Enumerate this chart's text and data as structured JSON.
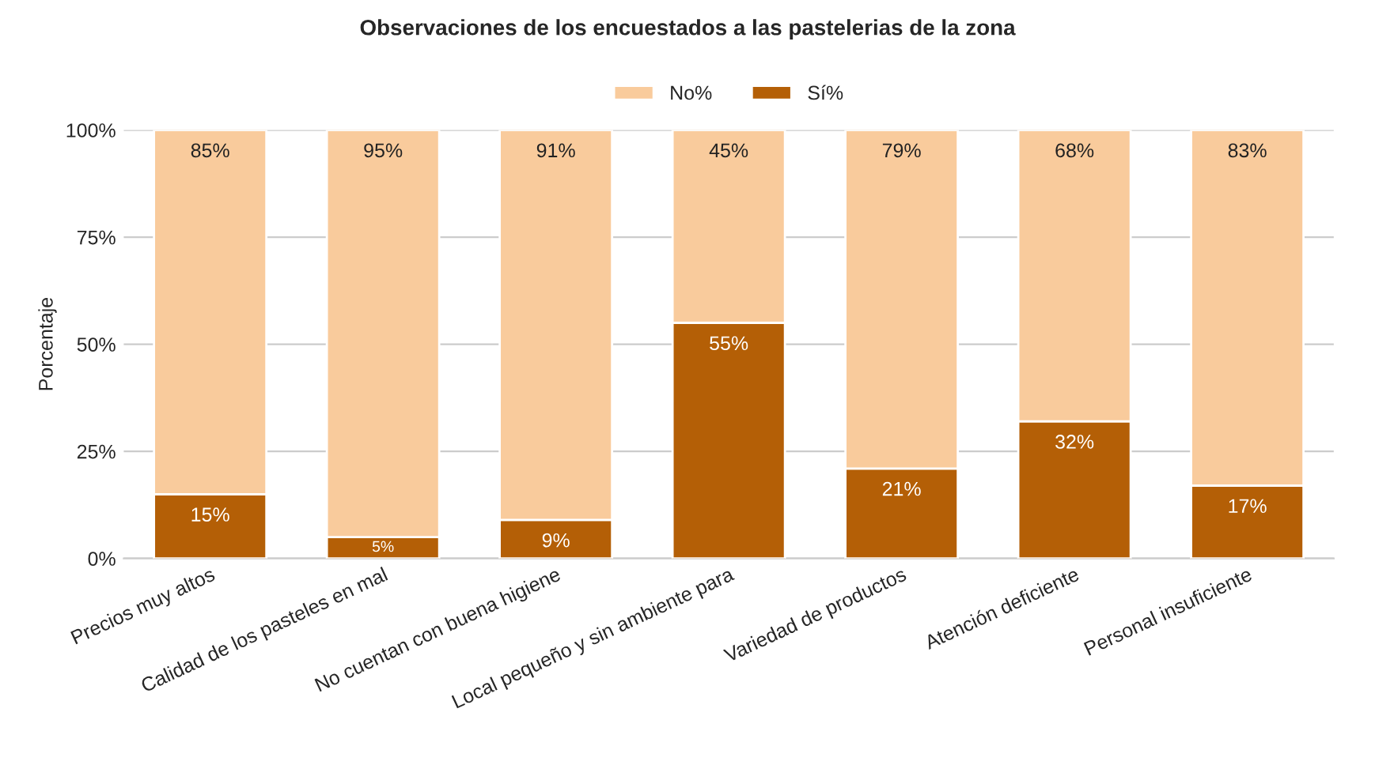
{
  "chart_data": {
    "type": "bar",
    "title": "Observaciones de los encuestados a las pastelerias de la zona",
    "ylabel": "Porcentaje",
    "categories": [
      "Precios muy altos",
      "Calidad de los pasteles en mal",
      "No cuentan con buena higiene",
      "Local pequeño y sin ambiente para",
      "Variedad de productos",
      "Atención deficiente",
      "Personal insuficiente"
    ],
    "stacked": true,
    "series": [
      {
        "name": "Sí%",
        "color": "#b45f06",
        "values": [
          15,
          5,
          9,
          55,
          21,
          32,
          17
        ],
        "value_labels": [
          "15%",
          "5%",
          "9%",
          "55%",
          "21%",
          "32%",
          "17%"
        ]
      },
      {
        "name": "No%",
        "color": "#f9cb9c",
        "values": [
          85,
          95,
          91,
          45,
          79,
          68,
          83
        ],
        "value_labels": [
          "85%",
          "95%",
          "91%",
          "45%",
          "79%",
          "68%",
          "83%"
        ]
      }
    ],
    "ylim": [
      0,
      100
    ],
    "yticks": [
      {
        "value": 0,
        "label": "0%"
      },
      {
        "value": 25,
        "label": "25%"
      },
      {
        "value": 50,
        "label": "50%"
      },
      {
        "value": 75,
        "label": "75%"
      },
      {
        "value": 100,
        "label": "100%"
      }
    ],
    "grid": "y",
    "legend": "top"
  }
}
